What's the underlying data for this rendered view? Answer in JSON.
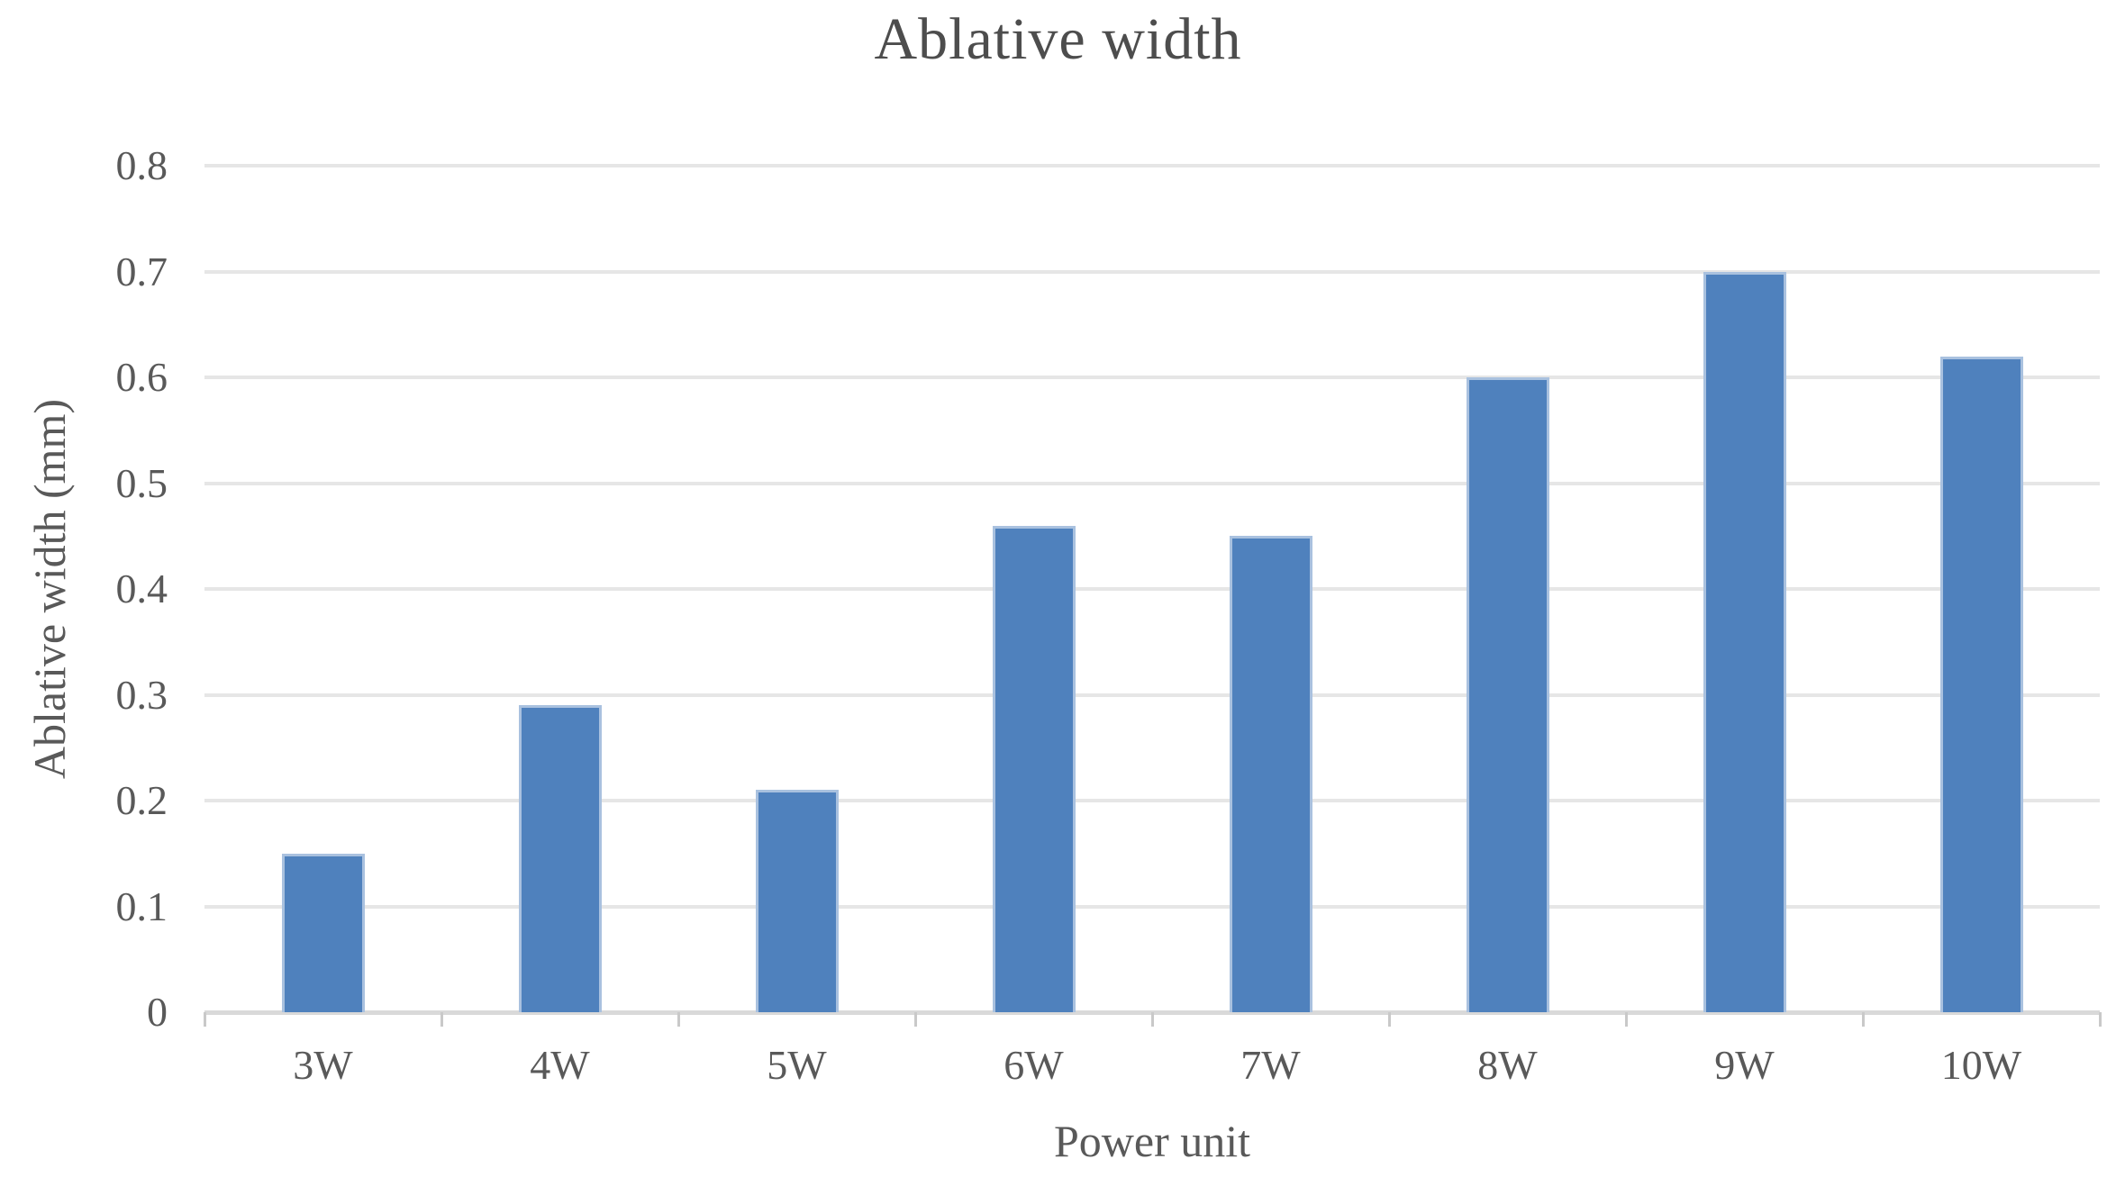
{
  "chart_data": {
    "type": "bar",
    "title": "Ablative width",
    "xlabel": "Power unit",
    "ylabel": "Ablative width (mm)",
    "categories": [
      "3W",
      "4W",
      "5W",
      "6W",
      "7W",
      "8W",
      "9W",
      "10W"
    ],
    "values": [
      0.15,
      0.29,
      0.21,
      0.46,
      0.45,
      0.6,
      0.7,
      0.62
    ],
    "ylim": [
      0,
      0.8
    ],
    "ytick_step": 0.1,
    "ytick_labels": [
      "0",
      "0.1",
      "0.2",
      "0.3",
      "0.4",
      "0.5",
      "0.6",
      "0.7",
      "0.8"
    ],
    "grid": true,
    "legend": "none",
    "colors": {
      "bar_fill": "#4f81bd",
      "bar_edge": "#a9c1df",
      "gridline": "#e6e6e6",
      "axis_line": "#d9d9d9",
      "tick_mark": "#c9c9c9",
      "title_text": "#4d4d4d",
      "label_text": "#595959",
      "background": "#ffffff"
    }
  }
}
